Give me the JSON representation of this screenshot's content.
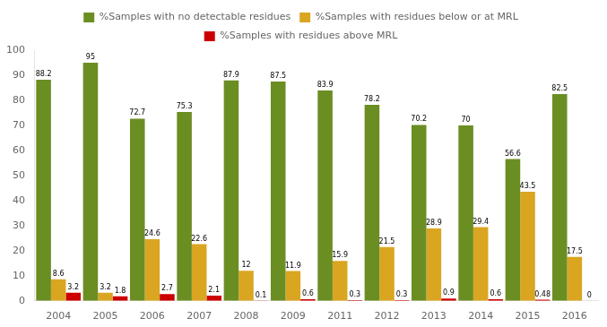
{
  "chart_data": {
    "type": "bar",
    "categories": [
      "2004",
      "2005",
      "2006",
      "2007",
      "2008",
      "2009",
      "2011",
      "2012",
      "2013",
      "2014",
      "2015",
      "2016"
    ],
    "series": [
      {
        "name": "%Samples with no detectable residues",
        "color": "#6B8E23",
        "values": [
          88.2,
          95,
          72.7,
          75.3,
          87.9,
          87.5,
          83.9,
          78.2,
          70.2,
          70,
          56.6,
          82.5
        ]
      },
      {
        "name": "%Samples with residues below or at MRL",
        "color": "#DAA520",
        "values": [
          8.6,
          3.2,
          24.6,
          22.6,
          12,
          11.9,
          15.9,
          21.5,
          28.9,
          29.4,
          43.5,
          17.5
        ]
      },
      {
        "name": "%Samples with residues above MRL",
        "color": "#CC0000",
        "values": [
          3.2,
          1.8,
          2.7,
          2.1,
          0.1,
          0.6,
          0.3,
          0.3,
          0.9,
          0.6,
          0.48,
          0
        ]
      }
    ],
    "ylim": [
      0,
      100
    ],
    "yticks": [
      0,
      10,
      20,
      30,
      40,
      50,
      60,
      70,
      80,
      90,
      100
    ],
    "grid": false,
    "legend": "top",
    "data_labels": true
  }
}
